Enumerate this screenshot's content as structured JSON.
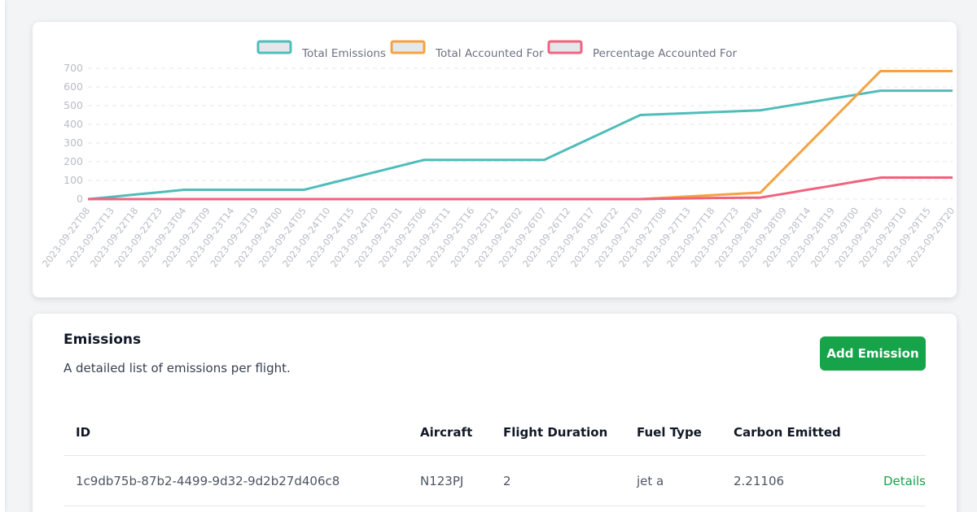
{
  "chart_data": {
    "type": "line",
    "categories": [
      "2023-09-22T08",
      "2023-09-22T13",
      "2023-09-22T18",
      "2023-09-22T23",
      "2023-09-23T04",
      "2023-09-23T09",
      "2023-09-23T14",
      "2023-09-23T19",
      "2023-09-24T00",
      "2023-09-24T05",
      "2023-09-24T10",
      "2023-09-24T15",
      "2023-09-24T20",
      "2023-09-25T01",
      "2023-09-25T06",
      "2023-09-25T11",
      "2023-09-25T16",
      "2023-09-25T21",
      "2023-09-26T02",
      "2023-09-26T07",
      "2023-09-26T12",
      "2023-09-26T17",
      "2023-09-26T22",
      "2023-09-27T03",
      "2023-09-27T08",
      "2023-09-27T13",
      "2023-09-27T18",
      "2023-09-27T23",
      "2023-09-28T04",
      "2023-09-28T09",
      "2023-09-28T14",
      "2023-09-28T19",
      "2023-09-29T00",
      "2023-09-29T05",
      "2023-09-29T10",
      "2023-09-29T15",
      "2023-09-29T20"
    ],
    "series": [
      {
        "name": "Total Emissions",
        "color": "#4fbdba",
        "values": [
          0,
          12,
          25,
          37,
          50,
          50,
          50,
          50,
          50,
          50,
          82,
          114,
          146,
          178,
          210,
          210,
          210,
          210,
          210,
          210,
          270,
          330,
          390,
          450,
          455,
          460,
          465,
          470,
          475,
          496,
          517,
          538,
          559,
          580,
          580,
          580,
          580
        ]
      },
      {
        "name": "Total Accounted For",
        "color": "#f4a340",
        "values": [
          0,
          0,
          0,
          0,
          0,
          0,
          0,
          0,
          0,
          0,
          0,
          0,
          0,
          0,
          0,
          0,
          0,
          0,
          0,
          0,
          0,
          0,
          0,
          0,
          7,
          14,
          21,
          28,
          35,
          165,
          295,
          425,
          555,
          685,
          685,
          685,
          685
        ]
      },
      {
        "name": "Percentage Accounted For",
        "color": "#f0637f",
        "values": [
          0,
          0,
          0,
          0,
          0,
          0,
          0,
          0,
          0,
          0,
          0,
          0,
          0,
          0,
          0,
          0,
          0,
          0,
          0,
          0,
          0,
          0,
          0,
          0,
          2,
          4,
          6,
          7,
          8,
          29,
          51,
          72,
          94,
          115,
          115,
          115,
          115
        ]
      }
    ],
    "ylim": [
      0,
      700
    ],
    "yticks": [
      0,
      100,
      200,
      300,
      400,
      500,
      600,
      700
    ],
    "grid": true,
    "legend": "top"
  },
  "emissions": {
    "title": "Emissions",
    "description": "A detailed list of emissions per flight.",
    "add_button": "Add Emission",
    "table": {
      "columns": [
        "ID",
        "Aircraft",
        "Flight Duration",
        "Fuel Type",
        "Carbon Emitted"
      ],
      "rows": [
        [
          "1c9db75b-87b2-4499-9d32-9d2b27d406c8",
          "N123PJ",
          2,
          "jet a",
          2.21106
        ]
      ],
      "row_action": "Details"
    }
  }
}
